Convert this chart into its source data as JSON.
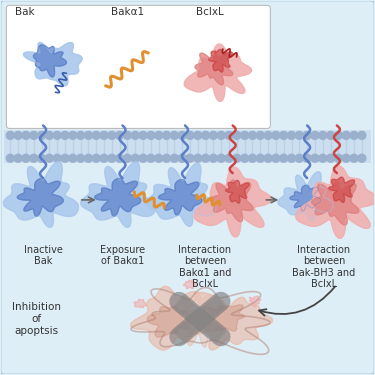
{
  "bg_color": "#deeef7",
  "legend_box_color": "#ffffff",
  "membrane_bg": "#ccdff0",
  "membrane_dot_color": "#9ab0cc",
  "membrane_line_color": "#b8cde0",
  "blue_dark": "#3a5ca8",
  "blue_mid": "#5a7ec8",
  "blue_light": "#8aafe0",
  "blue_vlight": "#aac8ec",
  "red_dark": "#aa2222",
  "red_mid": "#cc4444",
  "red_light": "#e08080",
  "red_vlight": "#f0b0b0",
  "orange": "#e09030",
  "gray_mito": "#888888",
  "mito_pink": "#d4a090",
  "mito_light": "#e8c0b0",
  "text_color": "#333333",
  "labels": {
    "bak": "Bak",
    "baka1": "Bakα1",
    "bclxl": "BclxL",
    "step1": "Inactive\nBak",
    "step2": "Exposure\nof Bakα1",
    "step3": "Interaction\nbetween\nBakα1 and\nBclxL",
    "step4": "Interaction\nbetween\nBak-BH3 and\nBclxL",
    "inhibition": "Inhibition\nof\napoptsis"
  },
  "font_size": 7.0
}
